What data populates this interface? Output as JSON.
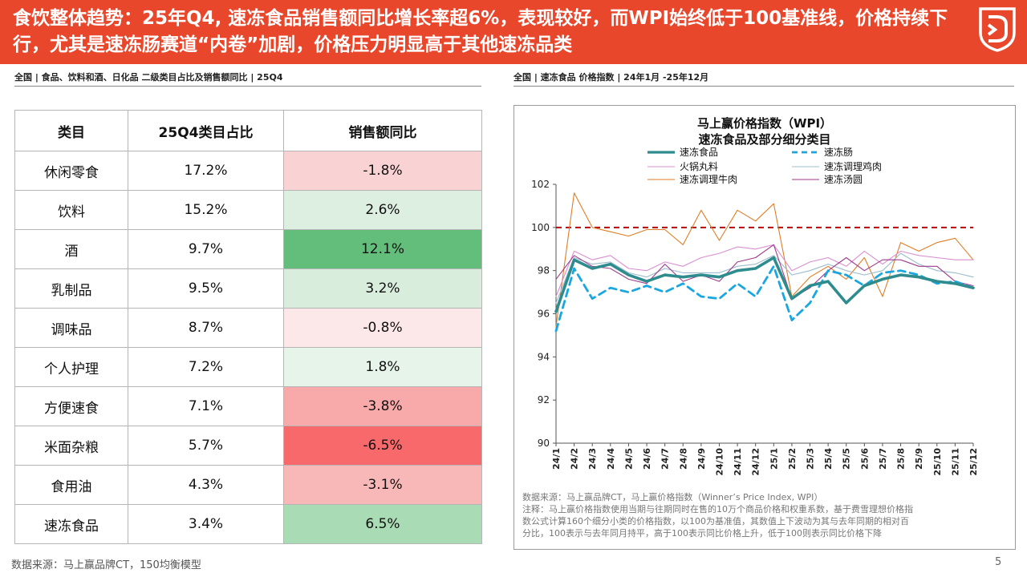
{
  "header": {
    "title": "食饮整体趋势：25年Q4, 速冻食品销售额同比增长率超6%，表现较好，而WPI始终低于100基准线，价格持续下行，尤其是速冻肠赛道“内卷”加剧，价格压力明显高于其他速冻品类",
    "logo": "shield-logo-icon"
  },
  "left": {
    "subtitle": "全国 | 食品、饮料和酒、日化品  二级类目占比及销售额同比 | 25Q4",
    "headers": [
      "类目",
      "25Q4类目占比",
      "销售额同比"
    ],
    "rows": [
      {
        "cat": "休闲零食",
        "share": "17.2%",
        "yoy": "-1.8%",
        "color": "#f9d3d3"
      },
      {
        "cat": "饮料",
        "share": "15.2%",
        "yoy": "2.6%",
        "color": "#dcefe0"
      },
      {
        "cat": "酒",
        "share": "9.7%",
        "yoy": "12.1%",
        "color": "#63be7b"
      },
      {
        "cat": "乳制品",
        "share": "9.5%",
        "yoy": "3.2%",
        "color": "#d8eddc"
      },
      {
        "cat": "调味品",
        "share": "8.7%",
        "yoy": "-0.8%",
        "color": "#fce8e8"
      },
      {
        "cat": "个人护理",
        "share": "7.2%",
        "yoy": "1.8%",
        "color": "#e6f4e9"
      },
      {
        "cat": "方便速食",
        "share": "7.1%",
        "yoy": "-3.8%",
        "color": "#f8a9a9"
      },
      {
        "cat": "米面杂粮",
        "share": "5.7%",
        "yoy": "-6.5%",
        "color": "#f8696b"
      },
      {
        "cat": "食用油",
        "share": "4.3%",
        "yoy": "-3.1%",
        "color": "#f9b8b8"
      },
      {
        "cat": "速冻食品",
        "share": "3.4%",
        "yoy": "6.5%",
        "color": "#a9dbb5"
      }
    ]
  },
  "right": {
    "subtitle": "全国 | 速冻食品  价格指数  | 24年1月 -25年12月",
    "note_lines": [
      "数据来源：马上赢品牌CT，马上赢价格指数（Winner’s Price Index, WPI）",
      "注释：马上赢价格指数使用当期与往期同时在售的10万个商品价格和权重系数，基于费雪理想价格指",
      "数公式计算160个细分小类的价格指数，以100为基准值，其数值上下波动为其与去年同期的相对百",
      "分比，100表示与去年同月持平，高于100表示同比价格上升，低于100则表示同比价格下降"
    ]
  },
  "chart_data": {
    "type": "line",
    "title": [
      "马上赢价格指数（WPI）",
      "速冻食品及部分细分类目"
    ],
    "ylim": [
      90,
      102
    ],
    "yticks": [
      90,
      92,
      94,
      96,
      98,
      100,
      102
    ],
    "reference_line": 100,
    "reference_color": "#c00000",
    "x": [
      "24/1",
      "24/2",
      "24/3",
      "24/4",
      "24/5",
      "24/6",
      "24/7",
      "24/8",
      "24/9",
      "24/10",
      "24/11",
      "24/12",
      "25/1",
      "25/2",
      "25/3",
      "25/4",
      "25/5",
      "25/6",
      "25/7",
      "25/8",
      "25/9",
      "25/10",
      "25/11",
      "25/12"
    ],
    "series": [
      {
        "name": "速冻食品",
        "color": "#2e8b8e",
        "width": 3.6,
        "dash": "",
        "values": [
          96.1,
          98.5,
          98.1,
          98.3,
          97.8,
          97.5,
          97.8,
          97.7,
          97.8,
          97.7,
          98.0,
          98.1,
          98.6,
          96.7,
          97.3,
          97.5,
          96.5,
          97.3,
          97.6,
          97.8,
          97.7,
          97.5,
          97.4,
          97.2
        ]
      },
      {
        "name": "速冻肠",
        "color": "#1aa7e0",
        "width": 2.8,
        "dash": "9,6",
        "values": [
          95.2,
          98.1,
          96.7,
          97.2,
          97.0,
          97.3,
          97.0,
          97.4,
          96.8,
          96.7,
          97.4,
          96.8,
          98.2,
          95.7,
          96.5,
          98.0,
          97.8,
          97.3,
          97.9,
          98.0,
          97.8,
          97.4,
          97.5,
          97.2
        ]
      },
      {
        "name": "火锅丸料",
        "color": "#d98fd0",
        "width": 1.1,
        "dash": "",
        "values": [
          96.8,
          98.9,
          98.5,
          98.7,
          98.1,
          98.0,
          98.4,
          98.2,
          98.6,
          98.8,
          99.1,
          99.0,
          99.2,
          98.0,
          98.4,
          98.6,
          98.2,
          98.9,
          98.3,
          98.9,
          98.7,
          98.6,
          98.5,
          98.5
        ]
      },
      {
        "name": "速冻调理鸡肉",
        "color": "#9bbccc",
        "width": 1.1,
        "dash": "",
        "values": [
          96.5,
          98.6,
          98.3,
          98.4,
          97.9,
          97.7,
          98.1,
          97.9,
          97.9,
          97.9,
          98.2,
          98.3,
          98.7,
          97.8,
          98.0,
          98.3,
          98.0,
          97.8,
          98.0,
          98.8,
          98.3,
          98.0,
          97.9,
          97.7
        ]
      },
      {
        "name": "速冻调理牛肉",
        "color": "#e07d25",
        "width": 1.1,
        "dash": "",
        "values": [
          95.4,
          101.6,
          100.0,
          99.8,
          99.6,
          99.9,
          99.9,
          99.2,
          100.8,
          99.4,
          100.8,
          100.3,
          101.1,
          96.8,
          97.7,
          98.2,
          97.6,
          98.6,
          96.8,
          99.3,
          98.9,
          99.3,
          99.5,
          98.5
        ]
      },
      {
        "name": "速冻汤圆",
        "color": "#a03a8c",
        "width": 1.1,
        "dash": "",
        "values": [
          97.6,
          98.7,
          98.2,
          98.1,
          97.6,
          97.4,
          98.3,
          97.5,
          97.8,
          97.5,
          98.4,
          98.6,
          99.2,
          96.7,
          97.2,
          98.0,
          98.6,
          98.0,
          98.5,
          98.5,
          98.2,
          98.2,
          97.5,
          97.3
        ]
      }
    ]
  },
  "footer": {
    "source": "数据来源：马上赢品牌CT，150均衡模型",
    "page": "5"
  }
}
